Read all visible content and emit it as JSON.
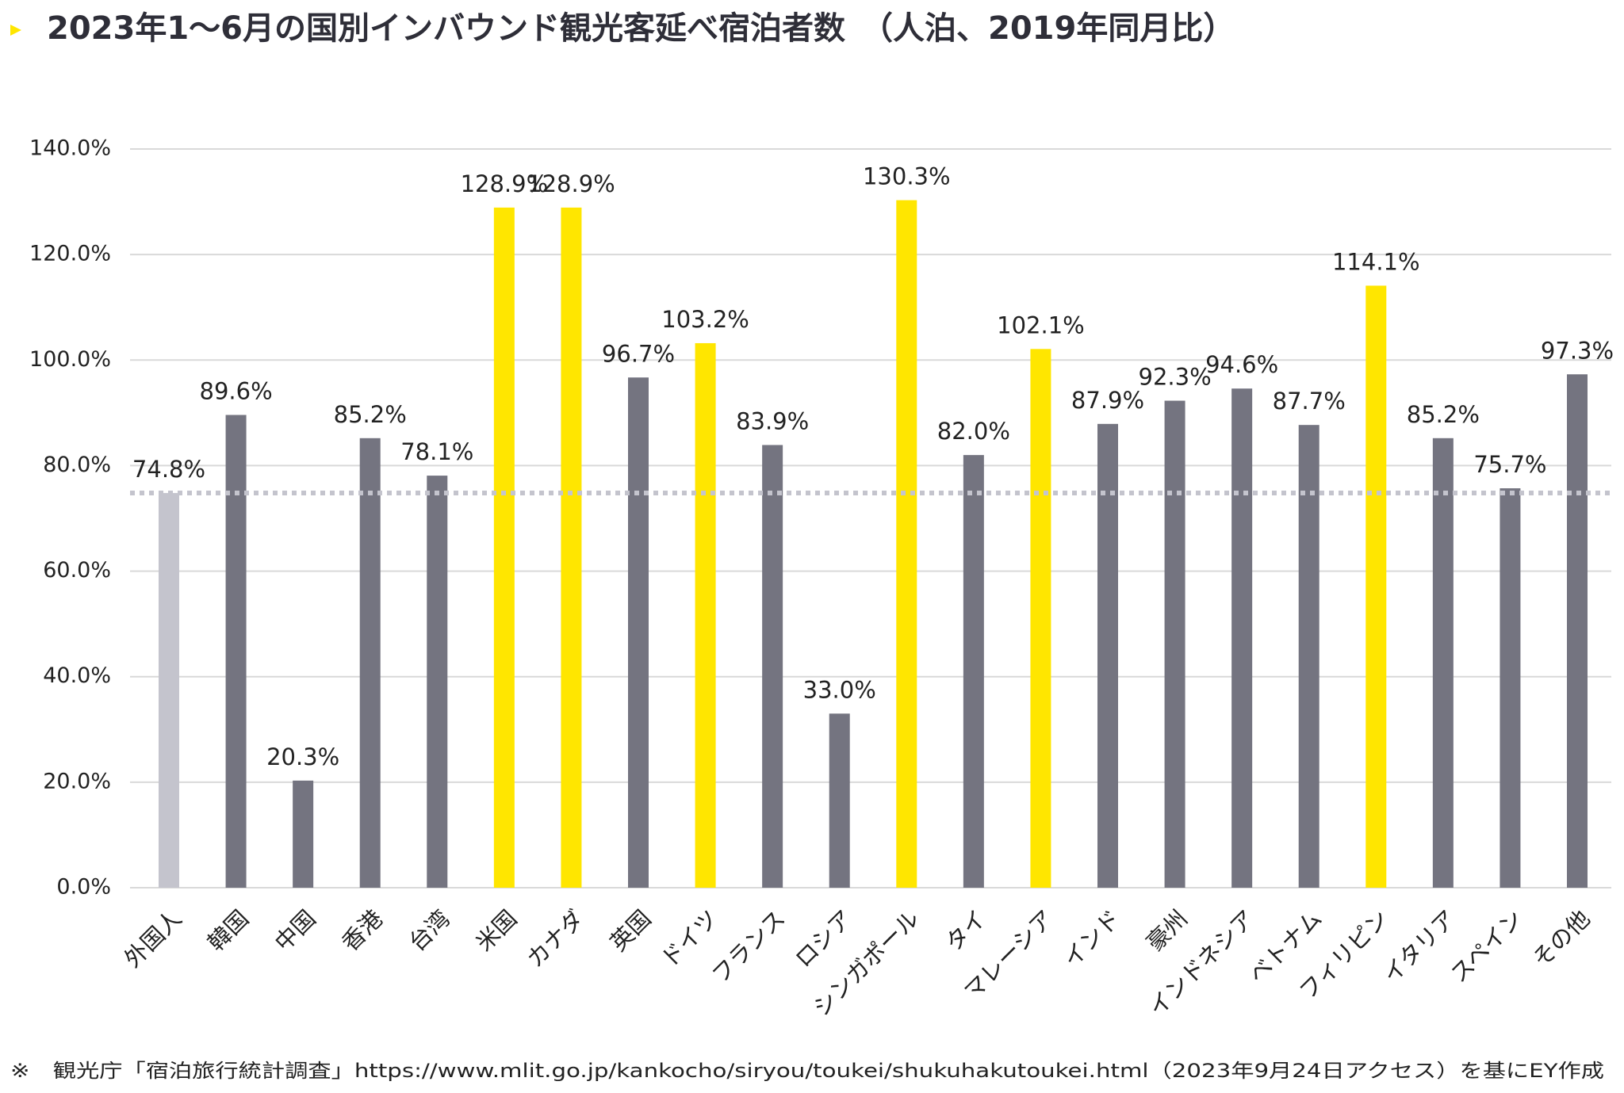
{
  "chart_data": {
    "type": "bar",
    "title": "2023年1～6月の国別インバウンド観光客延べ宿泊者数　（人泊、2019年同月比）",
    "source": "※　観光庁「宿泊旅行統計調査」https://www.mlit.go.jp/kankocho/siryou/toukei/shukuhakutoukei.html（2023年9月24日アクセス）を基にEY作成",
    "categories": [
      "外国人",
      "韓国",
      "中国",
      "香港",
      "台湾",
      "米国",
      "カナダ",
      "英国",
      "ドイツ",
      "フランス",
      "ロシア",
      "シンガポール",
      "タイ",
      "マレーシア",
      "インド",
      "豪州",
      "インドネシア",
      "ベトナム",
      "フィリピン",
      "イタリア",
      "スペイン",
      "その他"
    ],
    "values": [
      74.8,
      89.6,
      20.3,
      85.2,
      78.1,
      128.9,
      128.9,
      96.7,
      103.2,
      83.9,
      33.0,
      130.3,
      82.0,
      102.1,
      87.9,
      92.3,
      94.6,
      87.7,
      114.1,
      85.2,
      75.7,
      97.3
    ],
    "value_labels": [
      "74.8%",
      "89.6%",
      "20.3%",
      "85.2%",
      "78.1%",
      "128.9%",
      "128.9%",
      "96.7%",
      "103.2%",
      "83.9%",
      "33.0%",
      "130.3%",
      "82.0%",
      "102.1%",
      "87.9%",
      "92.3%",
      "94.6%",
      "87.7%",
      "114.1%",
      "85.2%",
      "75.7%",
      "97.3%"
    ],
    "colors": [
      "#c4c4cd",
      "#747480",
      "#747480",
      "#747480",
      "#747480",
      "#ffe600",
      "#ffe600",
      "#747480",
      "#ffe600",
      "#747480",
      "#747480",
      "#ffe600",
      "#747480",
      "#ffe600",
      "#747480",
      "#747480",
      "#747480",
      "#747480",
      "#ffe600",
      "#747480",
      "#747480",
      "#747480"
    ],
    "ylim": [
      0,
      140
    ],
    "yticks": [
      {
        "value": 0,
        "label": "0.0%"
      },
      {
        "value": 20,
        "label": "20.0%"
      },
      {
        "value": 40,
        "label": "40.0%"
      },
      {
        "value": 60,
        "label": "60.0%"
      },
      {
        "value": 80,
        "label": "80.0%"
      },
      {
        "value": 100,
        "label": "100.0%"
      },
      {
        "value": 120,
        "label": "120.0%"
      },
      {
        "value": 140,
        "label": "140.0%"
      }
    ],
    "grid": true,
    "reference_line_color": "#c4c4cd"
  }
}
